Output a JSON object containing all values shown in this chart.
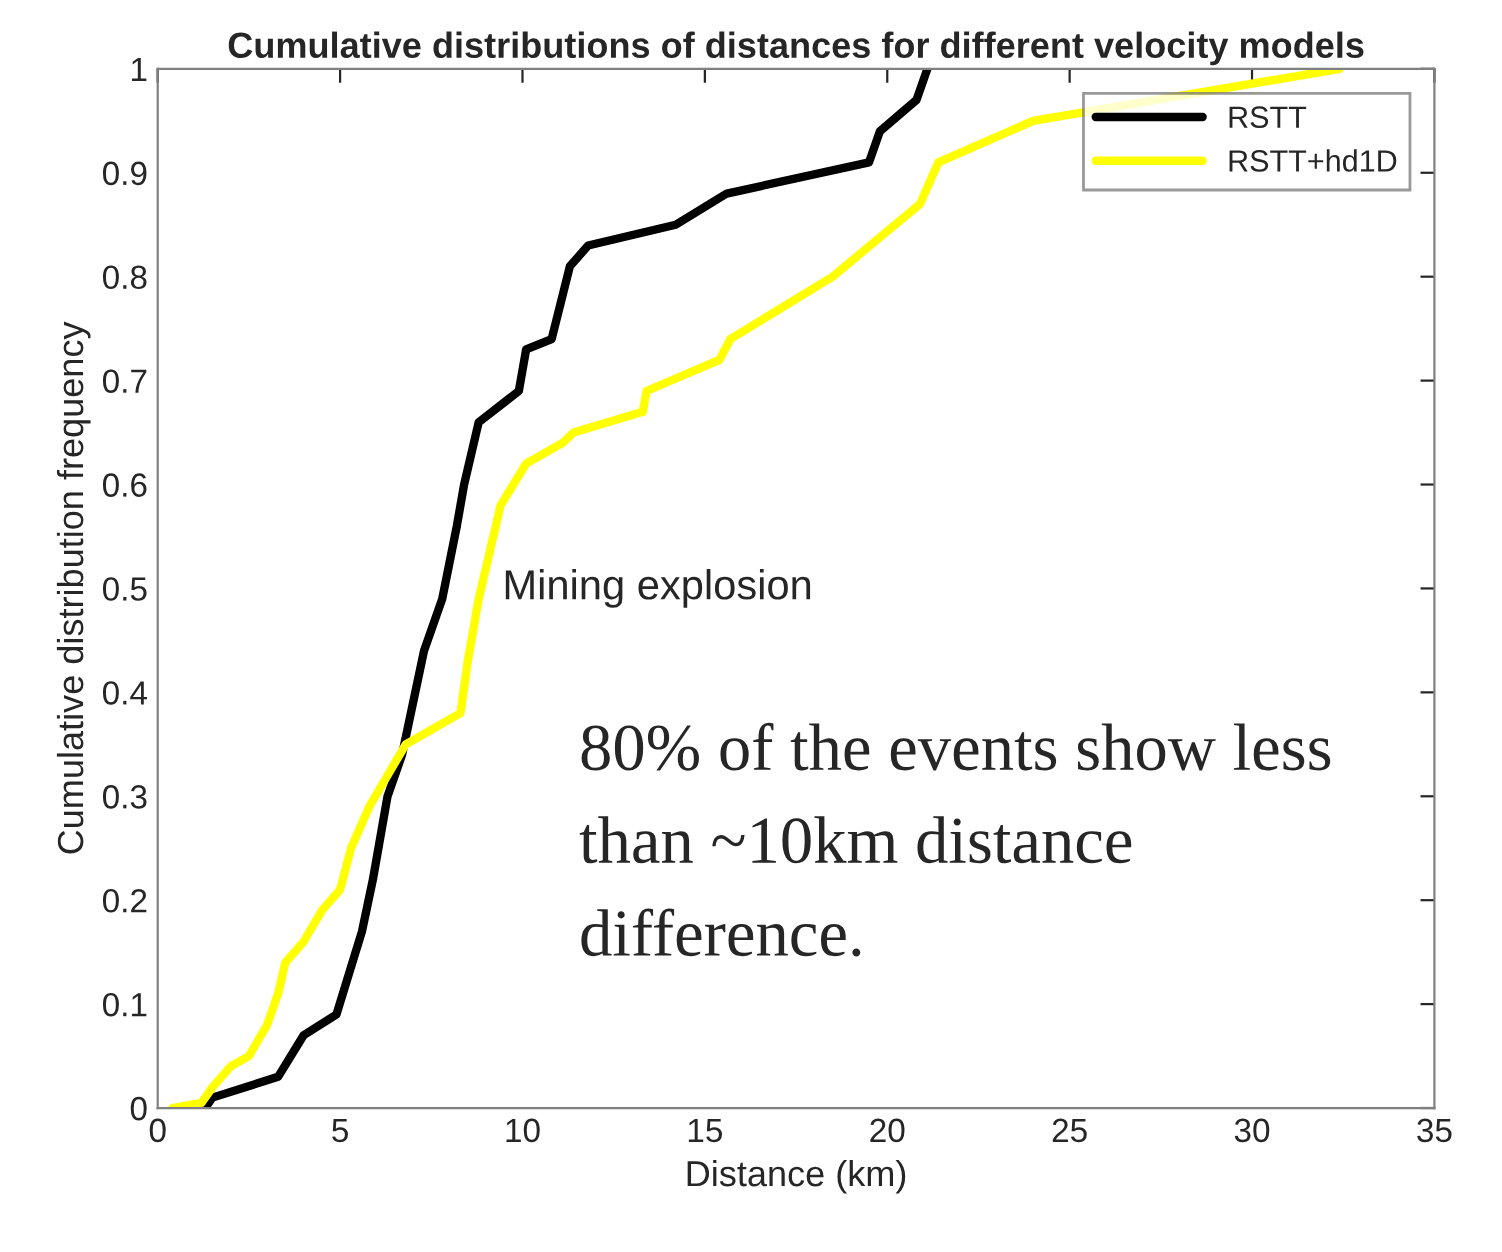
{
  "chart_data": {
    "type": "line",
    "title": "Cumulative distributions of distances for different velocity models",
    "xlabel": "Distance (km)",
    "ylabel": "Cumulative distribution frequency",
    "xlim": [
      0,
      35
    ],
    "ylim": [
      0,
      1
    ],
    "xticks": [
      0,
      5,
      10,
      15,
      20,
      25,
      30,
      35
    ],
    "yticks": [
      0,
      0.1,
      0.2,
      0.3,
      0.4,
      0.5,
      0.6,
      0.7,
      0.8,
      0.9,
      1
    ],
    "grid": false,
    "legend": "top right",
    "line_style": "solid",
    "marker": "none",
    "annotations": [
      "Mining explosion",
      "80% of the events show less than ~10km distance difference."
    ],
    "series": [
      {
        "name": "RSTT",
        "color": "#000000",
        "x": [
          1.3,
          1.5,
          3.3,
          4.0,
          4.9,
          5.6,
          5.9,
          6.3,
          6.7,
          7.3,
          7.8,
          8.2,
          8.4,
          8.8,
          9.9,
          10.1,
          10.8,
          11.3,
          11.8,
          14.2,
          15.6,
          19.5,
          19.8,
          20.8,
          21.1
        ],
        "values": [
          0,
          0.01,
          0.03,
          0.07,
          0.09,
          0.17,
          0.22,
          0.3,
          0.34,
          0.44,
          0.49,
          0.56,
          0.6,
          0.66,
          0.69,
          0.73,
          0.74,
          0.81,
          0.83,
          0.85,
          0.88,
          0.91,
          0.94,
          0.97,
          1.0
        ]
      },
      {
        "name": "RSTT+hd1D",
        "color": "#ffff00",
        "x": [
          0.4,
          1.2,
          1.5,
          2.0,
          2.5,
          3.0,
          3.3,
          3.5,
          4.0,
          4.5,
          5.0,
          5.3,
          5.8,
          6.3,
          6.8,
          8.3,
          8.5,
          8.8,
          9.4,
          10.1,
          11.1,
          11.4,
          13.3,
          13.4,
          15.4,
          15.7,
          18.5,
          20.9,
          21.4,
          24.0,
          32.4
        ],
        "values": [
          0,
          0.005,
          0.02,
          0.04,
          0.05,
          0.08,
          0.11,
          0.14,
          0.16,
          0.19,
          0.21,
          0.25,
          0.29,
          0.32,
          0.35,
          0.38,
          0.43,
          0.49,
          0.58,
          0.62,
          0.64,
          0.65,
          0.67,
          0.69,
          0.72,
          0.74,
          0.8,
          0.87,
          0.91,
          0.95,
          1.0
        ]
      }
    ]
  }
}
